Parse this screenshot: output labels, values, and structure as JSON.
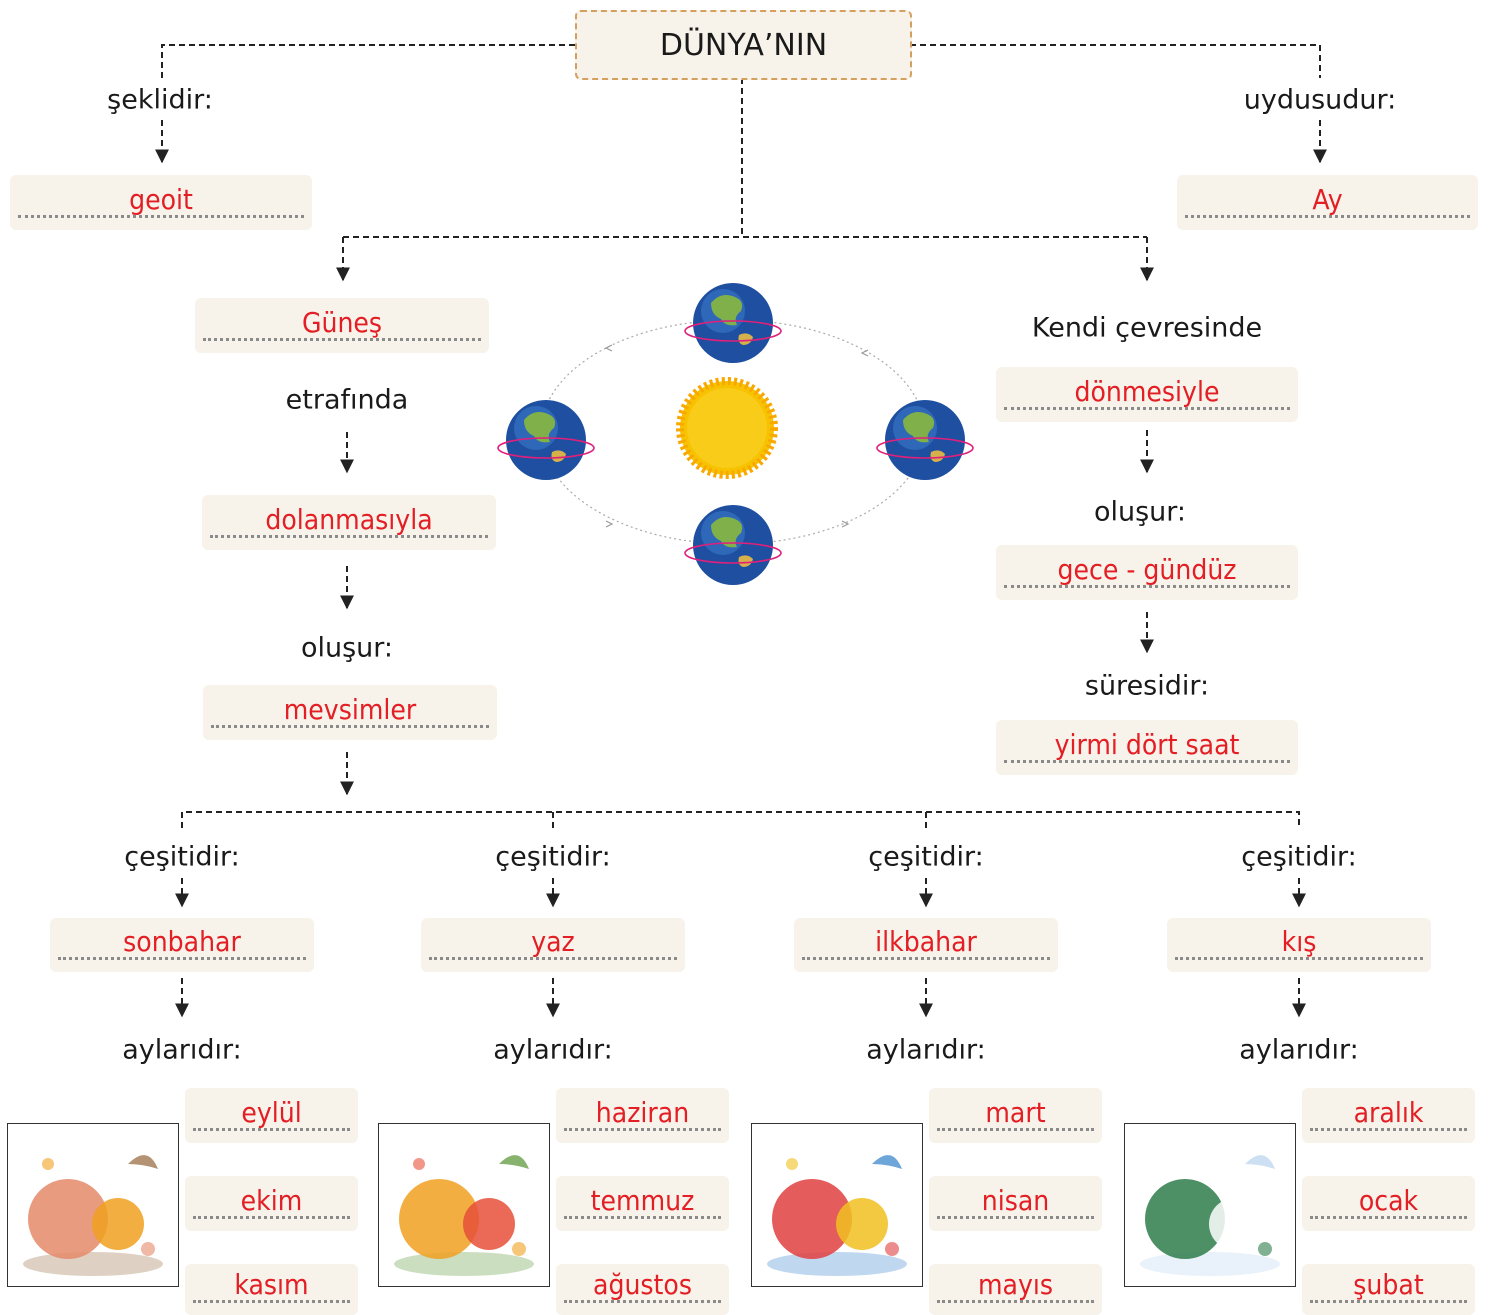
{
  "root": "DÜNYA’NIN",
  "shape": {
    "label": "şeklidir:",
    "answer": "geoit"
  },
  "moon": {
    "label": "uydusudur:",
    "answer": "Ay"
  },
  "revolution": {
    "answer1": "Güneş",
    "text1": "etrafında",
    "answer2": "dolanmasıyla",
    "text2": "oluşur:",
    "answer3": "mevsimler"
  },
  "rotation": {
    "text1": "Kendi çevresinde",
    "answer1": "dönmesiyle",
    "text2": "oluşur:",
    "answer2": "gece - gündüz",
    "text3": "süresidir:",
    "answer3": "yirmi dört saat"
  },
  "seasons": [
    {
      "label": "çeşitidir:",
      "name": "sonbahar",
      "months_label": "aylarıdır:",
      "months": [
        "eylül",
        "ekim",
        "kasım"
      ]
    },
    {
      "label": "çeşitidir:",
      "name": "yaz",
      "months_label": "aylarıdır:",
      "months": [
        "haziran",
        "temmuz",
        "ağustos"
      ]
    },
    {
      "label": "çeşitidir:",
      "name": "ilkbahar",
      "months_label": "aylarıdır:",
      "months": [
        "mart",
        "nisan",
        "mayıs"
      ]
    },
    {
      "label": "çeşitidir:",
      "name": "kış",
      "months_label": "aylarıdır:",
      "months": [
        "aralık",
        "ocak",
        "şubat"
      ]
    }
  ]
}
